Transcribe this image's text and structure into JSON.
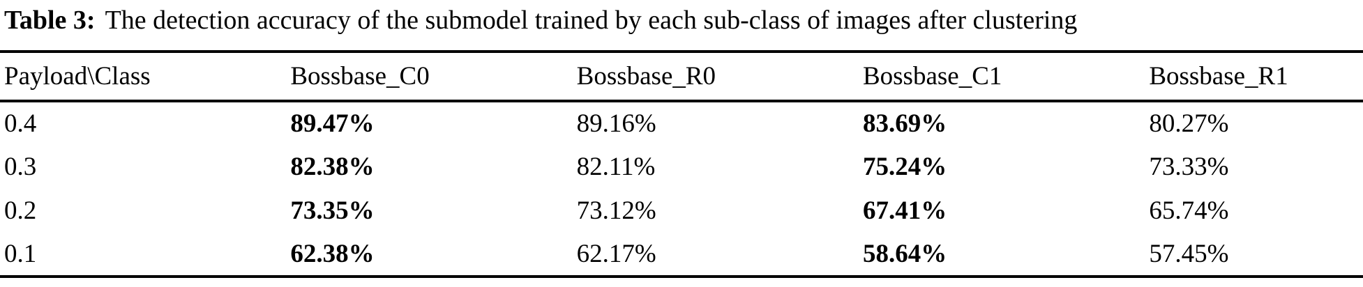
{
  "caption": {
    "label": "Table 3:",
    "text": "The detection accuracy of the submodel trained by each sub-class of images after clustering"
  },
  "table": {
    "headers": [
      "Payload\\Class",
      "Bossbase_C0",
      "Bossbase_R0",
      "Bossbase_C1",
      "Bossbase_R1"
    ],
    "bold_columns": [
      "Bossbase_C0",
      "Bossbase_C1"
    ],
    "rows": [
      {
        "payload": "0.4",
        "c0": "89.47%",
        "r0": "89.16%",
        "c1": "83.69%",
        "r1": "80.27%"
      },
      {
        "payload": "0.3",
        "c0": "82.38%",
        "r0": "82.11%",
        "c1": "75.24%",
        "r1": "73.33%"
      },
      {
        "payload": "0.2",
        "c0": "73.35%",
        "r0": "73.12%",
        "c1": "67.41%",
        "r1": "65.74%"
      },
      {
        "payload": "0.1",
        "c0": "62.38%",
        "r0": "62.17%",
        "c1": "58.64%",
        "r1": "57.45%"
      }
    ]
  },
  "colors": {
    "text": "#000000",
    "background": "#ffffff",
    "rule": "#000000"
  }
}
